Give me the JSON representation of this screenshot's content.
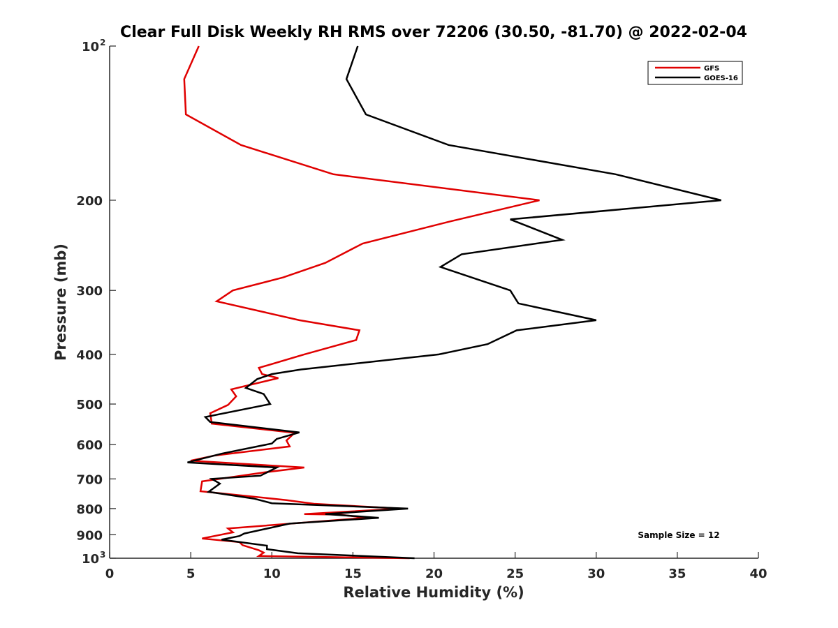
{
  "chart_data": {
    "type": "line",
    "title": "Clear Full Disk Weekly RH RMS over 72206 (30.50, -81.70) @ 2022-02-04",
    "xlabel": "Relative Humidity (%)",
    "ylabel": "Pressure (mb)",
    "xlim": [
      0,
      40
    ],
    "ylim": [
      100,
      1000
    ],
    "y_scale": "log",
    "y_reversed": true,
    "grid": false,
    "legend_position": "top-right",
    "x_ticks": [
      0,
      5,
      10,
      15,
      20,
      25,
      30,
      35,
      40
    ],
    "y_ticks": [
      {
        "value": 100,
        "label": "10",
        "exp": "2"
      },
      {
        "value": 200,
        "label": "200",
        "exp": ""
      },
      {
        "value": 300,
        "label": "300",
        "exp": ""
      },
      {
        "value": 400,
        "label": "400",
        "exp": ""
      },
      {
        "value": 500,
        "label": "500",
        "exp": ""
      },
      {
        "value": 600,
        "label": "600",
        "exp": ""
      },
      {
        "value": 700,
        "label": "700",
        "exp": ""
      },
      {
        "value": 800,
        "label": "800",
        "exp": ""
      },
      {
        "value": 900,
        "label": "900",
        "exp": ""
      },
      {
        "value": 1000,
        "label": "10",
        "exp": "3"
      }
    ],
    "annotation": "Sample Size = 12",
    "series": [
      {
        "name": "GFS",
        "color": "#e00000",
        "points": [
          [
            5.5,
            100
          ],
          [
            4.6,
            116
          ],
          [
            4.7,
            136
          ],
          [
            8.1,
            156
          ],
          [
            13.8,
            178
          ],
          [
            26.5,
            200
          ],
          [
            21.0,
            220
          ],
          [
            15.6,
            243
          ],
          [
            13.3,
            265
          ],
          [
            10.7,
            283
          ],
          [
            7.6,
            300
          ],
          [
            6.6,
            315
          ],
          [
            11.7,
            343
          ],
          [
            15.4,
            359
          ],
          [
            15.2,
            375
          ],
          [
            12.0,
            400
          ],
          [
            9.2,
            425
          ],
          [
            9.4,
            437
          ],
          [
            10.4,
            445
          ],
          [
            7.5,
            468
          ],
          [
            7.8,
            483
          ],
          [
            7.3,
            502
          ],
          [
            6.2,
            521
          ],
          [
            6.3,
            546
          ],
          [
            11.4,
            569
          ],
          [
            10.9,
            589
          ],
          [
            11.1,
            605
          ],
          [
            6.5,
            630
          ],
          [
            5.0,
            645
          ],
          [
            12.0,
            665
          ],
          [
            9.5,
            680
          ],
          [
            5.7,
            708
          ],
          [
            5.6,
            740
          ],
          [
            10.9,
            770
          ],
          [
            12.6,
            783
          ],
          [
            18.0,
            800
          ],
          [
            12.0,
            820
          ],
          [
            14.2,
            822
          ],
          [
            15.8,
            834
          ],
          [
            7.3,
            875
          ],
          [
            7.6,
            890
          ],
          [
            5.7,
            915
          ],
          [
            8.0,
            930
          ],
          [
            8.2,
            943
          ],
          [
            9.2,
            965
          ],
          [
            9.5,
            975
          ],
          [
            9.2,
            990
          ],
          [
            18.5,
            1000
          ]
        ]
      },
      {
        "name": "GOES-16",
        "color": "#000000",
        "points": [
          [
            15.3,
            100
          ],
          [
            14.6,
            116
          ],
          [
            15.8,
            136
          ],
          [
            20.9,
            156
          ],
          [
            31.2,
            178
          ],
          [
            37.7,
            200
          ],
          [
            24.7,
            218
          ],
          [
            27.9,
            239
          ],
          [
            21.7,
            255
          ],
          [
            20.4,
            270
          ],
          [
            24.7,
            300
          ],
          [
            25.2,
            318
          ],
          [
            30.0,
            343
          ],
          [
            25.1,
            359
          ],
          [
            23.3,
            382
          ],
          [
            20.3,
            400
          ],
          [
            11.8,
            428
          ],
          [
            10.0,
            437
          ],
          [
            9.1,
            447
          ],
          [
            8.4,
            465
          ],
          [
            9.5,
            478
          ],
          [
            9.9,
            500
          ],
          [
            5.9,
            530
          ],
          [
            6.2,
            542
          ],
          [
            11.7,
            568
          ],
          [
            10.3,
            585
          ],
          [
            10.0,
            597
          ],
          [
            6.9,
            625
          ],
          [
            4.8,
            650
          ],
          [
            10.3,
            665
          ],
          [
            9.3,
            690
          ],
          [
            6.3,
            700
          ],
          [
            6.8,
            715
          ],
          [
            6.1,
            742
          ],
          [
            8.9,
            765
          ],
          [
            10.0,
            781
          ],
          [
            18.4,
            800
          ],
          [
            13.3,
            820
          ],
          [
            16.6,
            834
          ],
          [
            11.1,
            856
          ],
          [
            8.3,
            895
          ],
          [
            8.0,
            905
          ],
          [
            6.9,
            920
          ],
          [
            9.7,
            945
          ],
          [
            9.7,
            960
          ],
          [
            11.6,
            978
          ],
          [
            18.8,
            1000
          ]
        ]
      }
    ]
  }
}
